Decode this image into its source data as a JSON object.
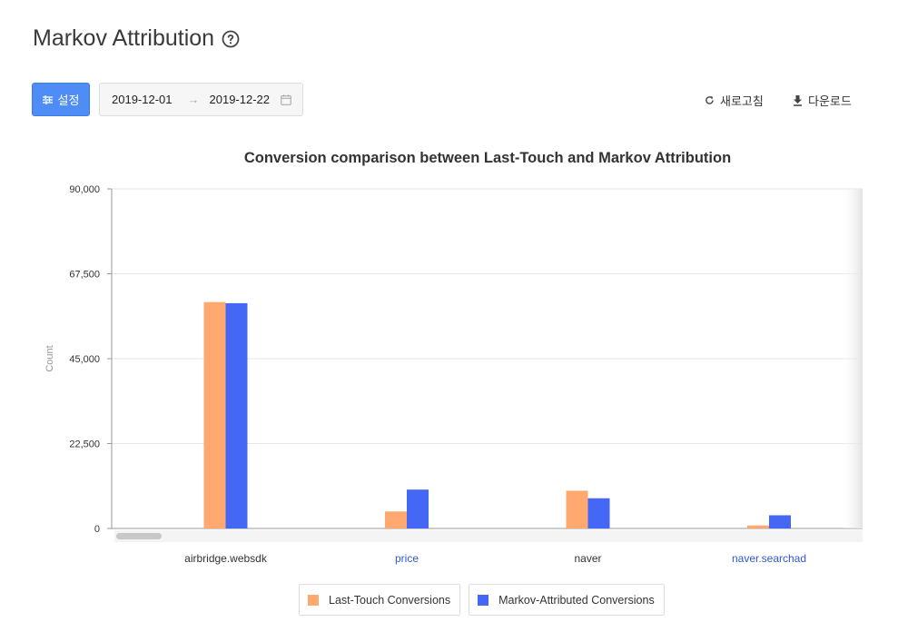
{
  "header": {
    "title": "Markov Attribution"
  },
  "toolbar": {
    "settings_label": "설정",
    "date_start": "2019-12-01",
    "date_end": "2019-12-22",
    "refresh_label": "새로고침",
    "download_label": "다운로드"
  },
  "colors": {
    "accent": "#4e8df5",
    "last_touch": "#ffa86f",
    "markov": "#4567f5",
    "link": "#3158d6"
  },
  "icons": [
    "help-icon",
    "settings-sliders-icon",
    "arrow-right-icon",
    "calendar-icon",
    "refresh-icon",
    "download-icon"
  ],
  "chart_data": {
    "type": "bar",
    "title": "Conversion comparison between Last-Touch and Markov Attribution",
    "xlabel": "",
    "ylabel": "Count",
    "ylim": [
      0,
      90000
    ],
    "yticks": [
      "90,000",
      "67,500",
      "45,000",
      "22,500",
      "0"
    ],
    "ytick_values": [
      90000,
      67500,
      45000,
      22500,
      0
    ],
    "grid": true,
    "legend_position": "bottom",
    "categories": [
      "airbridge.websdk",
      "price",
      "naver",
      "naver.searchad"
    ],
    "category_is_link": [
      false,
      true,
      false,
      true
    ],
    "series": [
      {
        "name": "Last-Touch Conversions",
        "values": [
          60000,
          4500,
          10000,
          800
        ]
      },
      {
        "name": "Markov-Attributed Conversions",
        "values": [
          59700,
          10300,
          8000,
          3500
        ]
      }
    ]
  }
}
